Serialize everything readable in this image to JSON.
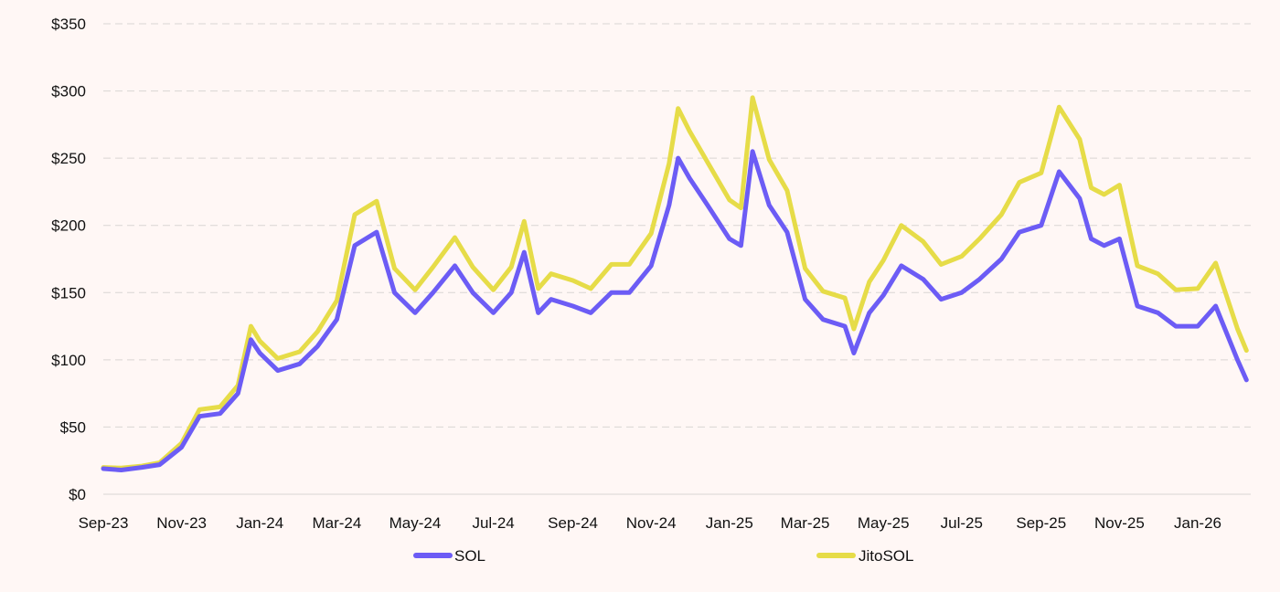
{
  "chart_data": {
    "type": "line",
    "title": "",
    "xlabel": "",
    "ylabel": "",
    "ylim": [
      0,
      350
    ],
    "y_ticks": [
      "$0",
      "$50",
      "$100",
      "$150",
      "$200",
      "$250",
      "$300",
      "$350"
    ],
    "y_tick_values": [
      0,
      50,
      100,
      150,
      200,
      250,
      300,
      350
    ],
    "x_ticks": [
      "Sep-23",
      "Nov-23",
      "Jan-24",
      "Mar-24",
      "May-24",
      "Jul-24",
      "Sep-24",
      "Nov-24",
      "Jan-25",
      "Mar-25",
      "May-25",
      "Jul-25",
      "Sep-25",
      "Nov-25",
      "Jan-26"
    ],
    "x_tick_dates": [
      "2023-09-01",
      "2023-11-01",
      "2024-01-01",
      "2024-03-01",
      "2024-05-01",
      "2024-07-01",
      "2024-09-01",
      "2024-11-01",
      "2025-01-01",
      "2025-03-01",
      "2025-05-01",
      "2025-07-01",
      "2025-09-01",
      "2025-11-01",
      "2026-01-01"
    ],
    "grid": "horizontal dashed",
    "legend_position": "bottom",
    "x": [
      "2023-09-01",
      "2023-09-15",
      "2023-10-01",
      "2023-10-15",
      "2023-11-01",
      "2023-11-15",
      "2023-12-01",
      "2023-12-15",
      "2023-12-25",
      "2024-01-01",
      "2024-01-15",
      "2024-02-01",
      "2024-02-15",
      "2024-03-01",
      "2024-03-15",
      "2024-04-01",
      "2024-04-15",
      "2024-05-01",
      "2024-05-15",
      "2024-06-01",
      "2024-06-15",
      "2024-07-01",
      "2024-07-15",
      "2024-07-25",
      "2024-08-05",
      "2024-08-15",
      "2024-09-01",
      "2024-09-15",
      "2024-10-01",
      "2024-10-15",
      "2024-11-01",
      "2024-11-15",
      "2024-11-22",
      "2024-12-01",
      "2024-12-15",
      "2025-01-01",
      "2025-01-10",
      "2025-01-19",
      "2025-02-01",
      "2025-02-15",
      "2025-03-01",
      "2025-03-15",
      "2025-04-01",
      "2025-04-08",
      "2025-04-20",
      "2025-05-01",
      "2025-05-15",
      "2025-06-01",
      "2025-06-15",
      "2025-07-01",
      "2025-07-15",
      "2025-08-01",
      "2025-08-15",
      "2025-09-01",
      "2025-09-15",
      "2025-10-01",
      "2025-10-10",
      "2025-10-20",
      "2025-11-01",
      "2025-11-15",
      "2025-12-01",
      "2025-12-15",
      "2026-01-01",
      "2026-01-15",
      "2026-02-01",
      "2026-02-08"
    ],
    "series": [
      {
        "name": "SOL",
        "color": "#6C5CF5",
        "values": [
          19,
          18,
          20,
          22,
          35,
          58,
          60,
          75,
          115,
          105,
          92,
          97,
          110,
          130,
          185,
          195,
          150,
          135,
          150,
          170,
          150,
          135,
          150,
          180,
          135,
          145,
          140,
          135,
          150,
          150,
          170,
          215,
          250,
          235,
          215,
          190,
          185,
          255,
          215,
          195,
          145,
          130,
          125,
          105,
          135,
          148,
          170,
          160,
          145,
          150,
          160,
          175,
          195,
          200,
          240,
          220,
          190,
          185,
          190,
          140,
          135,
          125,
          125,
          140,
          100,
          85
        ]
      },
      {
        "name": "JitoSOL",
        "color": "#E6DC48",
        "values": [
          20,
          19.5,
          21,
          23.5,
          38,
          63,
          65,
          81,
          125,
          114,
          101,
          106,
          121,
          144,
          208,
          218,
          168,
          152,
          169,
          191,
          169,
          152,
          169,
          203,
          153,
          164,
          159,
          153,
          171,
          171,
          194,
          246,
          287,
          270,
          247,
          219,
          213,
          295,
          249,
          226,
          168,
          151,
          146,
          123,
          158,
          174,
          200,
          188,
          171,
          177,
          190,
          208,
          232,
          239,
          288,
          264,
          228,
          223,
          230,
          170,
          164,
          152,
          153,
          172,
          123,
          107
        ]
      }
    ]
  }
}
